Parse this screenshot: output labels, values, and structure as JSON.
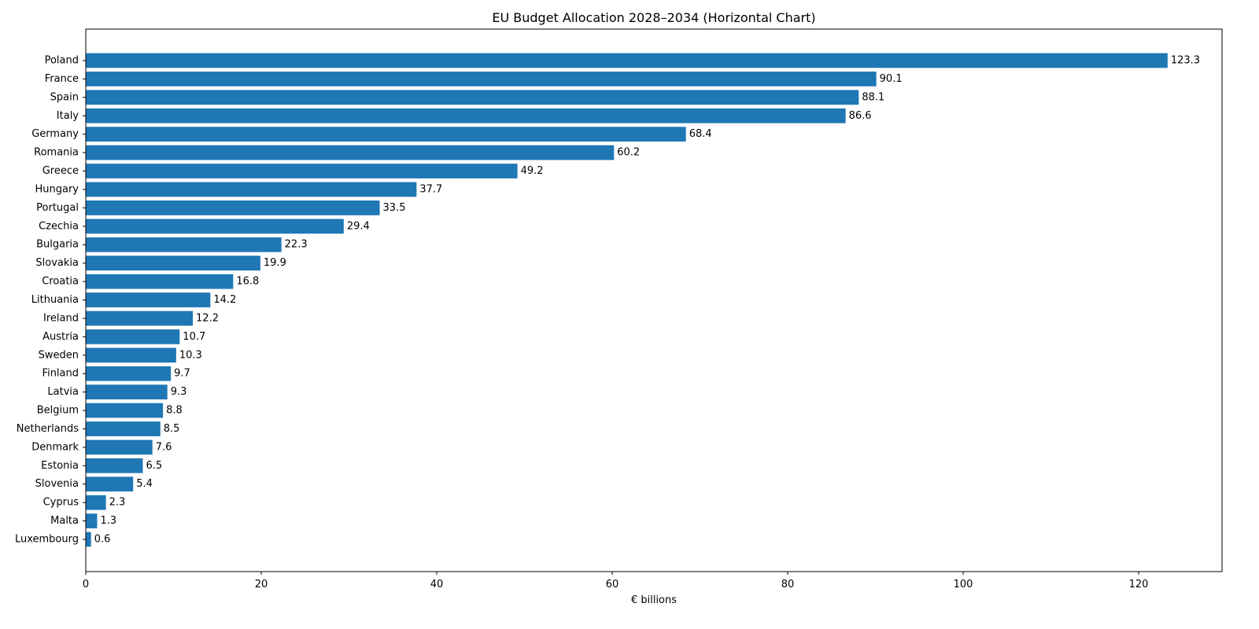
{
  "chart_data": {
    "type": "bar",
    "orientation": "horizontal",
    "title": "EU Budget Allocation 2028–2034 (Horizontal Chart)",
    "xlabel": "€ billions",
    "ylabel": "",
    "xlim": [
      0,
      129.5
    ],
    "xticks": [
      0,
      20,
      40,
      60,
      80,
      100,
      120
    ],
    "grid": false,
    "bar_color": "#1f77b4",
    "categories": [
      "Poland",
      "France",
      "Spain",
      "Italy",
      "Germany",
      "Romania",
      "Greece",
      "Hungary",
      "Portugal",
      "Czechia",
      "Bulgaria",
      "Slovakia",
      "Croatia",
      "Lithuania",
      "Ireland",
      "Austria",
      "Sweden",
      "Finland",
      "Latvia",
      "Belgium",
      "Netherlands",
      "Denmark",
      "Estonia",
      "Slovenia",
      "Cyprus",
      "Malta",
      "Luxembourg"
    ],
    "values": [
      123.3,
      90.1,
      88.1,
      86.6,
      68.4,
      60.2,
      49.2,
      37.7,
      33.5,
      29.4,
      22.3,
      19.9,
      16.8,
      14.2,
      12.2,
      10.7,
      10.3,
      9.7,
      9.3,
      8.8,
      8.5,
      7.6,
      6.5,
      5.4,
      2.3,
      1.3,
      0.6
    ],
    "data_labels": [
      "123.3",
      "90.1",
      "88.1",
      "86.6",
      "68.4",
      "60.2",
      "49.2",
      "37.7",
      "33.5",
      "29.4",
      "22.3",
      "19.9",
      "16.8",
      "14.2",
      "12.2",
      "10.7",
      "10.3",
      "9.7",
      "9.3",
      "8.8",
      "8.5",
      "7.6",
      "6.5",
      "5.4",
      "2.3",
      "1.3",
      "0.6"
    ]
  }
}
